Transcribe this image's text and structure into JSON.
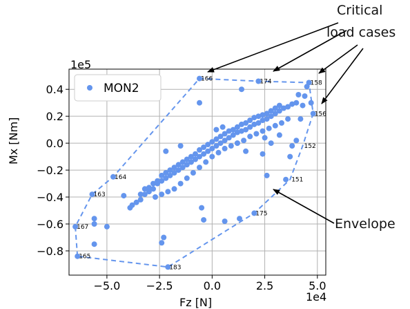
{
  "chart_data": {
    "type": "scatter",
    "xlabel": "Fz [N]",
    "ylabel": "Mx [Nm]",
    "x_exponent": "1e4",
    "y_exponent": "1e5",
    "xlim": [
      -6.8,
      5.4
    ],
    "ylim": [
      -0.98,
      0.55
    ],
    "x_ticks": [
      -5.0,
      -2.5,
      0.0,
      2.5,
      5.0
    ],
    "x_tick_labels": [
      "−5.0",
      "−2.5",
      "0.0",
      "2.5",
      "5.0"
    ],
    "y_ticks": [
      -0.8,
      -0.6,
      -0.4,
      -0.2,
      0.0,
      0.2,
      0.4
    ],
    "y_tick_labels": [
      "−0.8",
      "−0.6",
      "−0.4",
      "−0.2",
      "0.0",
      "0.2",
      "0.4"
    ],
    "grid": true,
    "legend": {
      "position": "top-left",
      "entries": [
        "MON2"
      ]
    },
    "colors": {
      "points": "#6495ed",
      "envelope": "#6495ed",
      "text": "#000000",
      "grid": "#b0b0b0"
    },
    "series": [
      {
        "name": "MON2",
        "points": [
          [
            -6.5,
            -0.62
          ],
          [
            -6.4,
            -0.84
          ],
          [
            -5.7,
            -0.38
          ],
          [
            -5.6,
            -0.56
          ],
          [
            -5.6,
            -0.6
          ],
          [
            -5.6,
            -0.75
          ],
          [
            -5.0,
            -0.62
          ],
          [
            -4.7,
            -0.25
          ],
          [
            -4.2,
            -0.39
          ],
          [
            -3.9,
            -0.48
          ],
          [
            -3.8,
            -0.46
          ],
          [
            -3.6,
            -0.44
          ],
          [
            -3.4,
            -0.42
          ],
          [
            -3.2,
            -0.38
          ],
          [
            -3.0,
            -0.36
          ],
          [
            -2.8,
            -0.34
          ],
          [
            -2.6,
            -0.3
          ],
          [
            -2.4,
            -0.28
          ],
          [
            -2.2,
            -0.26
          ],
          [
            -2.0,
            -0.24
          ],
          [
            -1.8,
            -0.22
          ],
          [
            -1.6,
            -0.2
          ],
          [
            -1.4,
            -0.18
          ],
          [
            -1.2,
            -0.16
          ],
          [
            -1.0,
            -0.14
          ],
          [
            -0.8,
            -0.12
          ],
          [
            -0.6,
            -0.1
          ],
          [
            -0.4,
            -0.08
          ],
          [
            -0.2,
            -0.06
          ],
          [
            0.0,
            -0.04
          ],
          [
            0.2,
            -0.02
          ],
          [
            0.4,
            0.0
          ],
          [
            0.6,
            0.02
          ],
          [
            0.8,
            0.04
          ],
          [
            1.0,
            0.06
          ],
          [
            1.2,
            0.08
          ],
          [
            1.4,
            0.09
          ],
          [
            1.6,
            0.1
          ],
          [
            1.8,
            0.12
          ],
          [
            2.0,
            0.14
          ],
          [
            2.2,
            0.15
          ],
          [
            2.4,
            0.17
          ],
          [
            2.6,
            0.18
          ],
          [
            2.8,
            0.2
          ],
          [
            3.0,
            0.22
          ],
          [
            3.2,
            0.24
          ],
          [
            3.4,
            0.26
          ],
          [
            3.6,
            0.27
          ],
          [
            3.8,
            0.29
          ],
          [
            4.0,
            0.3
          ],
          [
            -3.4,
            -0.38
          ],
          [
            -3.2,
            -0.34
          ],
          [
            -3.0,
            -0.33
          ],
          [
            -2.8,
            -0.3
          ],
          [
            -2.6,
            -0.28
          ],
          [
            -2.4,
            -0.24
          ],
          [
            -2.2,
            -0.22
          ],
          [
            -2.0,
            -0.2
          ],
          [
            -1.8,
            -0.18
          ],
          [
            -1.6,
            -0.16
          ],
          [
            -1.4,
            -0.14
          ],
          [
            -1.2,
            -0.12
          ],
          [
            -1.0,
            -0.1
          ],
          [
            -0.8,
            -0.08
          ],
          [
            -0.6,
            -0.05
          ],
          [
            -0.4,
            -0.03
          ],
          [
            -0.2,
            -0.01
          ],
          [
            0.0,
            0.01
          ],
          [
            0.2,
            0.03
          ],
          [
            0.4,
            0.05
          ],
          [
            0.6,
            0.07
          ],
          [
            0.8,
            0.09
          ],
          [
            1.0,
            0.1
          ],
          [
            1.2,
            0.12
          ],
          [
            1.4,
            0.14
          ],
          [
            1.6,
            0.15
          ],
          [
            1.8,
            0.17
          ],
          [
            2.0,
            0.19
          ],
          [
            2.2,
            0.2
          ],
          [
            2.4,
            0.21
          ],
          [
            2.6,
            0.22
          ],
          [
            2.8,
            0.24
          ],
          [
            3.0,
            0.26
          ],
          [
            3.2,
            0.28
          ],
          [
            -2.7,
            -0.4
          ],
          [
            -2.4,
            -0.38
          ],
          [
            -2.1,
            -0.36
          ],
          [
            -1.8,
            -0.34
          ],
          [
            -1.5,
            -0.3
          ],
          [
            -1.2,
            -0.26
          ],
          [
            -0.9,
            -0.22
          ],
          [
            -0.6,
            -0.18
          ],
          [
            -0.3,
            -0.14
          ],
          [
            0.0,
            -0.1
          ],
          [
            0.3,
            -0.07
          ],
          [
            0.6,
            -0.04
          ],
          [
            0.9,
            -0.02
          ],
          [
            1.2,
            0.0
          ],
          [
            1.5,
            0.02
          ],
          [
            1.8,
            0.05
          ],
          [
            2.1,
            0.07
          ],
          [
            2.4,
            0.09
          ],
          [
            2.7,
            0.11
          ],
          [
            3.0,
            0.13
          ],
          [
            3.3,
            0.15
          ],
          [
            3.6,
            0.18
          ],
          [
            -2.2,
            -0.06
          ],
          [
            -2.4,
            -0.74
          ],
          [
            -2.3,
            -0.7
          ],
          [
            -0.5,
            -0.48
          ],
          [
            -0.4,
            -0.57
          ],
          [
            -0.6,
            0.3
          ],
          [
            -1.5,
            -0.02
          ],
          [
            1.4,
            0.4
          ],
          [
            0.6,
            -0.58
          ],
          [
            1.3,
            -0.56
          ],
          [
            2.0,
            -0.52
          ],
          [
            2.4,
            -0.08
          ],
          [
            2.6,
            -0.24
          ],
          [
            2.5,
            0.04
          ],
          [
            1.2,
            0.0
          ],
          [
            3.5,
            -0.27
          ],
          [
            3.7,
            -0.1
          ],
          [
            4.0,
            0.02
          ],
          [
            4.3,
            0.28
          ],
          [
            4.1,
            0.36
          ],
          [
            4.5,
            0.42
          ],
          [
            4.6,
            0.45
          ],
          [
            4.4,
            0.35
          ],
          [
            4.7,
            0.3
          ],
          [
            4.8,
            0.22
          ],
          [
            4.2,
            0.18
          ],
          [
            3.8,
            -0.02
          ],
          [
            2.2,
            0.46
          ],
          [
            -0.6,
            0.48
          ],
          [
            -2.1,
            -0.92
          ],
          [
            -1.0,
            -0.14
          ],
          [
            0.2,
            0.1
          ],
          [
            0.5,
            0.12
          ],
          [
            1.6,
            -0.06
          ],
          [
            2.8,
            0.0
          ],
          [
            3.2,
            0.06
          ]
        ]
      }
    ],
    "envelope": [
      [
        -6.4,
        -0.84
      ],
      [
        -6.5,
        -0.62
      ],
      [
        -5.7,
        -0.38
      ],
      [
        -4.7,
        -0.25
      ],
      [
        -0.6,
        0.48
      ],
      [
        2.2,
        0.46
      ],
      [
        4.6,
        0.45
      ],
      [
        4.8,
        0.22
      ],
      [
        4.3,
        -0.02
      ],
      [
        3.7,
        -0.27
      ],
      [
        2.0,
        -0.52
      ],
      [
        -2.1,
        -0.92
      ],
      [
        -6.4,
        -0.84
      ]
    ],
    "point_labels": [
      {
        "text": "166",
        "x": -0.6,
        "y": 0.48
      },
      {
        "text": "174",
        "x": 2.2,
        "y": 0.46
      },
      {
        "text": "158",
        "x": 4.6,
        "y": 0.45
      },
      {
        "text": "156",
        "x": 4.8,
        "y": 0.22
      },
      {
        "text": "152",
        "x": 4.3,
        "y": -0.02
      },
      {
        "text": "151",
        "x": 3.7,
        "y": -0.27
      },
      {
        "text": "175",
        "x": 2.0,
        "y": -0.52
      },
      {
        "text": "183",
        "x": -2.1,
        "y": -0.92
      },
      {
        "text": "165",
        "x": -6.4,
        "y": -0.84
      },
      {
        "text": "167",
        "x": -6.5,
        "y": -0.62
      },
      {
        "text": "163",
        "x": -5.7,
        "y": -0.38
      },
      {
        "text": "164",
        "x": -4.7,
        "y": -0.25
      }
    ]
  },
  "annotations": {
    "critical_line1": "Critical",
    "critical_line2": "load cases",
    "envelope": "Envelope"
  }
}
